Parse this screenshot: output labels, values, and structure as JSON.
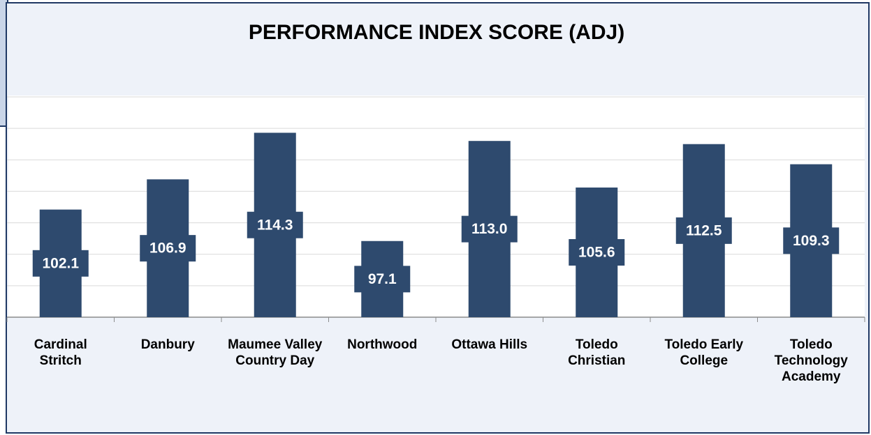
{
  "chart_data": {
    "type": "bar",
    "title": "PERFORMANCE INDEX SCORE (ADJ)",
    "categories": [
      "Cardinal Stritch",
      "Danbury",
      "Maumee Valley Country Day",
      "Northwood",
      "Ottawa Hills",
      "Toledo Christian",
      "Toledo Early College",
      "Toledo Technology Academy"
    ],
    "values": [
      102.1,
      106.9,
      114.3,
      97.1,
      113.0,
      105.6,
      112.5,
      109.3
    ],
    "value_labels": [
      "102.1",
      "106.9",
      "114.3",
      "97.1",
      "113.0",
      "105.6",
      "112.5",
      "109.3"
    ],
    "color": "#2e4a6e",
    "ylim": [
      85,
      120
    ],
    "yticks": [
      85,
      90,
      95,
      100,
      105,
      110,
      115,
      120
    ],
    "grid": true
  }
}
